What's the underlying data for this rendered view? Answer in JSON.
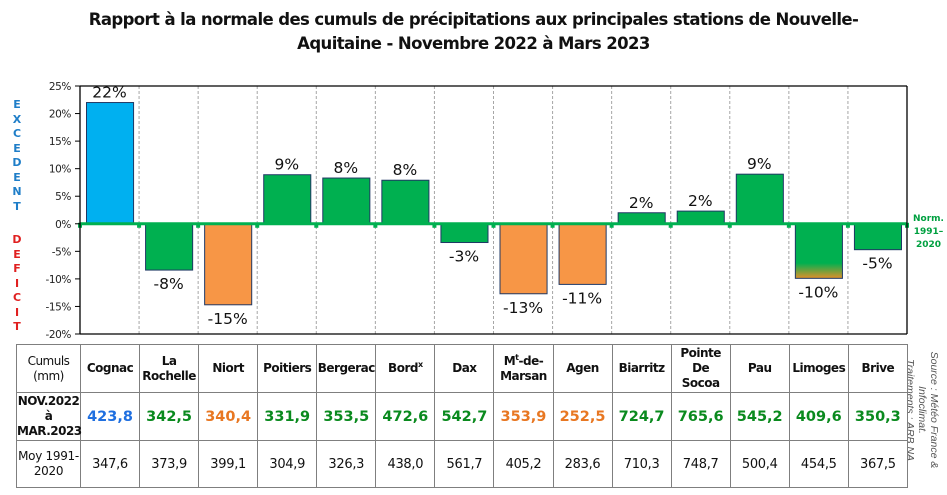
{
  "chart_data": {
    "type": "bar",
    "title": "Rapport à la normale des cumuls de précipitations aux principales stations de Nouvelle-Aquitaine - Novembre 2022 à Mars 2023",
    "title_lines": [
      "Rapport à la normale des cumuls de précipitations aux principales stations de Nouvelle-",
      "Aquitaine - Novembre 2022 à Mars 2023"
    ],
    "categories": [
      "Cognac",
      "La Rochelle",
      "Niort",
      "Poitiers",
      "Bergerac",
      "Bordeaux",
      "Dax",
      "Mont-de-Marsan",
      "Agen",
      "Biarritz",
      "Pointe De Socoa",
      "Pau",
      "Limoges",
      "Brive"
    ],
    "values": [
      22,
      -8.4,
      -14.7,
      8.9,
      8.3,
      7.9,
      -3.4,
      -12.7,
      -11.0,
      2.0,
      2.3,
      9.0,
      -9.9,
      -4.7
    ],
    "labels": [
      "22%",
      "-8%",
      "-15%",
      "9%",
      "8%",
      "8%",
      "-3%",
      "-13%",
      "-11%",
      "2%",
      "2%",
      "9%",
      "-10%",
      "-5%"
    ],
    "bar_colors": [
      "#00b0f0",
      "#00b050",
      "#f79646",
      "#00b050",
      "#00b050",
      "#00b050",
      "#00b050",
      "#f79646",
      "#f79646",
      "#00b050",
      "#00b050",
      "#00b050",
      "gradient-green-orange",
      "#00b050"
    ],
    "ylim": [
      -20,
      25
    ],
    "yticks": [
      25,
      20,
      15,
      10,
      5,
      0,
      -5,
      -10,
      -15,
      -20
    ],
    "ytick_labels": [
      "25%",
      "20%",
      "15%",
      "10%",
      "5%",
      "0%",
      "-5%",
      "-10%",
      "-15%",
      "-20%"
    ],
    "xlabel": "",
    "ylabel": "",
    "reference_line": {
      "value": 0,
      "label": "Norm. 1991–2020",
      "color": "#00b050"
    },
    "grid": "vertical dashed separators",
    "legend": "none"
  },
  "side_labels": {
    "excedent": "EXCEDENT",
    "deficit": "DEFICIT",
    "norm_lines": [
      "Norm.",
      "1991–",
      "2020"
    ]
  },
  "source": {
    "line1": "Source : Météo France & Infoclimat.",
    "line2": "Traitements : ARB NA"
  },
  "table": {
    "header_label_lines": [
      "Cumuls",
      "(mm)"
    ],
    "stations": [
      {
        "name": "Cognac"
      },
      {
        "name": "La Rochelle",
        "lines": [
          "La",
          "Rochelle"
        ]
      },
      {
        "name": "Niort"
      },
      {
        "name": "Poitiers"
      },
      {
        "name": "Bergerac"
      },
      {
        "name": "Bord",
        "sup": "x"
      },
      {
        "name": "Dax"
      },
      {
        "name": "M",
        "sup": "t",
        "rest": "-de-",
        "line2": "Marsan"
      },
      {
        "name": "Agen"
      },
      {
        "name": "Biarritz"
      },
      {
        "name": "Pointe De Socoa",
        "lines": [
          "Pointe",
          "De Socoa"
        ]
      },
      {
        "name": "Pau"
      },
      {
        "name": "Limoges"
      },
      {
        "name": "Brive"
      }
    ],
    "cumul_label_lines": [
      "NOV.2022",
      "à",
      "MAR.2023"
    ],
    "cumuls": [
      "423,8",
      "342,5",
      "340,4",
      "331,9",
      "353,5",
      "472,6",
      "542,7",
      "353,9",
      "252,5",
      "724,7",
      "765,6",
      "545,2",
      "409,6",
      "350,3"
    ],
    "cumul_colors": [
      "#1f6fe0",
      "#0a8a1e",
      "#e87722",
      "#0a8a1e",
      "#0a8a1e",
      "#0a8a1e",
      "#0a8a1e",
      "#e87722",
      "#e87722",
      "#0a8a1e",
      "#0a8a1e",
      "#0a8a1e",
      "#0a8a1e",
      "#0a8a1e"
    ],
    "normal_label_lines": [
      "Moy 1991-",
      "2020"
    ],
    "normals": [
      "347,6",
      "373,9",
      "399,1",
      "304,9",
      "326,3",
      "438,0",
      "561,7",
      "405,2",
      "283,6",
      "710,3",
      "748,7",
      "500,4",
      "454,5",
      "367,5"
    ]
  }
}
